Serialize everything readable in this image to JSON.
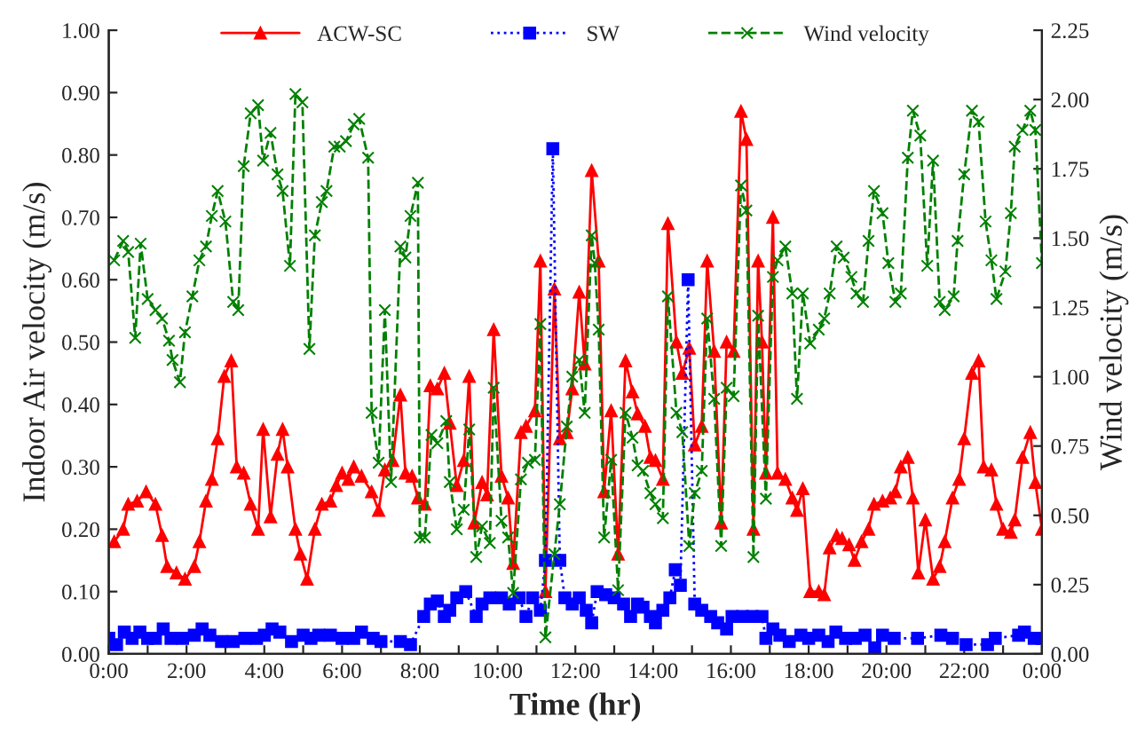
{
  "chart_data": {
    "type": "line",
    "xlabel": "Time (hr)",
    "ylabel": "Indoor Air velocity (m/s)",
    "y2label": "Wind velocity (m/s)",
    "xlim": [
      0,
      24
    ],
    "xticks": [
      {
        "value": 0,
        "label": "0:00"
      },
      {
        "value": 1,
        "label": null
      },
      {
        "value": 2,
        "label": "2:00"
      },
      {
        "value": 3,
        "label": null
      },
      {
        "value": 4,
        "label": "4:00"
      },
      {
        "value": 5,
        "label": null
      },
      {
        "value": 6,
        "label": "6:00"
      },
      {
        "value": 7,
        "label": null
      },
      {
        "value": 8,
        "label": "8:00"
      },
      {
        "value": 9,
        "label": null
      },
      {
        "value": 10,
        "label": "10:00"
      },
      {
        "value": 11,
        "label": null
      },
      {
        "value": 12,
        "label": "12:00"
      },
      {
        "value": 13,
        "label": null
      },
      {
        "value": 14,
        "label": "14:00"
      },
      {
        "value": 15,
        "label": null
      },
      {
        "value": 16,
        "label": "16:00"
      },
      {
        "value": 17,
        "label": null
      },
      {
        "value": 18,
        "label": "18:00"
      },
      {
        "value": 19,
        "label": null
      },
      {
        "value": 20,
        "label": "20:00"
      },
      {
        "value": 21,
        "label": null
      },
      {
        "value": 22,
        "label": "22:00"
      },
      {
        "value": 23,
        "label": null
      },
      {
        "value": 24,
        "label": "0:00"
      }
    ],
    "ylim": [
      0,
      1
    ],
    "yticks": [
      {
        "value": 0,
        "label": "0.00"
      },
      {
        "value": 0.1,
        "label": "0.10"
      },
      {
        "value": 0.2,
        "label": "0.20"
      },
      {
        "value": 0.3,
        "label": "0.30"
      },
      {
        "value": 0.4,
        "label": "0.40"
      },
      {
        "value": 0.5,
        "label": "0.50"
      },
      {
        "value": 0.6,
        "label": "0.60"
      },
      {
        "value": 0.7,
        "label": "0.70"
      },
      {
        "value": 0.8,
        "label": "0.80"
      },
      {
        "value": 0.9,
        "label": "0.90"
      },
      {
        "value": 1,
        "label": "1.00"
      }
    ],
    "y2lim": [
      0,
      2.25
    ],
    "y2ticks": [
      {
        "value": 0,
        "label": "0.00"
      },
      {
        "value": 0.25,
        "label": "0.25"
      },
      {
        "value": 0.5,
        "label": "0.50"
      },
      {
        "value": 0.75,
        "label": "0.75"
      },
      {
        "value": 1,
        "label": "1.00"
      },
      {
        "value": 1.25,
        "label": "1.25"
      },
      {
        "value": 1.5,
        "label": "1.50"
      },
      {
        "value": 1.75,
        "label": "1.75"
      },
      {
        "value": 2,
        "label": "2.00"
      },
      {
        "value": 2.25,
        "label": "2.25"
      }
    ],
    "grid": false,
    "legend": "top",
    "series": [
      {
        "name": "ACW-SC",
        "color": "#ff0000",
        "marker": "triangle",
        "line_style": "solid",
        "x": [
          0.14,
          0.37,
          0.5,
          0.73,
          0.96,
          1.2,
          1.37,
          1.5,
          1.74,
          1.96,
          2.2,
          2.33,
          2.5,
          2.65,
          2.8,
          2.97,
          3.15,
          3.29,
          3.47,
          3.65,
          3.84,
          3.97,
          4.16,
          4.34,
          4.47,
          4.6,
          4.8,
          4.93,
          5.1,
          5.3,
          5.48,
          5.7,
          5.85,
          6.0,
          6.16,
          6.3,
          6.5,
          6.76,
          6.94,
          7.1,
          7.3,
          7.5,
          7.63,
          7.8,
          7.95,
          8.13,
          8.27,
          8.45,
          8.63,
          8.77,
          8.95,
          9.13,
          9.27,
          9.4,
          9.6,
          9.73,
          9.9,
          10.1,
          10.27,
          10.4,
          10.6,
          10.73,
          10.96,
          11.1,
          11.23,
          11.46,
          11.6,
          11.78,
          11.92,
          12.1,
          12.24,
          12.42,
          12.6,
          12.74,
          12.92,
          13.1,
          13.29,
          13.47,
          13.6,
          13.79,
          13.93,
          14.06,
          14.25,
          14.38,
          14.6,
          14.75,
          14.93,
          15.07,
          15.25,
          15.39,
          15.57,
          15.75,
          15.89,
          16.07,
          16.26,
          16.4,
          16.58,
          16.7,
          16.8,
          16.9,
          17.08,
          17.2,
          17.4,
          17.58,
          17.7,
          17.85,
          18.04,
          18.26,
          18.4,
          18.54,
          18.72,
          18.86,
          19.04,
          19.18,
          19.36,
          19.54,
          19.68,
          19.9,
          20.1,
          20.23,
          20.37,
          20.55,
          20.68,
          20.82,
          21.0,
          21.2,
          21.37,
          21.5,
          21.7,
          21.87,
          22.0,
          22.2,
          22.37,
          22.5,
          22.7,
          22.83,
          23.0,
          23.2,
          23.3,
          23.5,
          23.7,
          23.83,
          24.0
        ],
        "values": [
          0.18,
          0.2,
          0.24,
          0.245,
          0.26,
          0.24,
          0.19,
          0.14,
          0.13,
          0.12,
          0.14,
          0.18,
          0.245,
          0.28,
          0.345,
          0.445,
          0.47,
          0.3,
          0.29,
          0.24,
          0.2,
          0.36,
          0.22,
          0.32,
          0.36,
          0.3,
          0.2,
          0.16,
          0.12,
          0.2,
          0.24,
          0.245,
          0.27,
          0.29,
          0.28,
          0.3,
          0.285,
          0.26,
          0.23,
          0.295,
          0.31,
          0.415,
          0.29,
          0.285,
          0.25,
          0.24,
          0.43,
          0.425,
          0.45,
          0.37,
          0.27,
          0.31,
          0.445,
          0.21,
          0.275,
          0.255,
          0.52,
          0.285,
          0.25,
          0.145,
          0.355,
          0.365,
          0.39,
          0.63,
          0.1,
          0.585,
          0.345,
          0.355,
          0.425,
          0.58,
          0.465,
          0.775,
          0.63,
          0.26,
          0.39,
          0.16,
          0.47,
          0.42,
          0.385,
          0.365,
          0.315,
          0.31,
          0.28,
          0.69,
          0.5,
          0.45,
          0.49,
          0.335,
          0.365,
          0.63,
          0.485,
          0.21,
          0.5,
          0.485,
          0.87,
          0.825,
          0.2,
          0.63,
          0.5,
          0.29,
          0.7,
          0.29,
          0.28,
          0.25,
          0.23,
          0.265,
          0.1,
          0.1,
          0.095,
          0.17,
          0.19,
          0.185,
          0.175,
          0.15,
          0.18,
          0.2,
          0.24,
          0.245,
          0.25,
          0.26,
          0.3,
          0.315,
          0.25,
          0.13,
          0.215,
          0.12,
          0.14,
          0.18,
          0.25,
          0.28,
          0.345,
          0.45,
          0.47,
          0.3,
          0.295,
          0.24,
          0.2,
          0.195,
          0.215,
          0.315,
          0.355,
          0.275,
          0.2
        ]
      },
      {
        "name": "SW",
        "color": "#0000ff",
        "marker": "square",
        "line_style": "dotted",
        "x": [
          0,
          0.2,
          0.4,
          0.6,
          0.8,
          1.0,
          1.2,
          1.4,
          1.6,
          1.9,
          2.2,
          2.4,
          2.6,
          2.9,
          3.2,
          3.5,
          3.8,
          4.0,
          4.2,
          4.4,
          4.7,
          5.0,
          5.2,
          5.4,
          5.7,
          6.0,
          6.3,
          6.5,
          6.8,
          7.0,
          7.5,
          7.76,
          8.1,
          8.27,
          8.45,
          8.63,
          8.77,
          8.95,
          9.18,
          9.45,
          9.6,
          9.8,
          10.1,
          10.3,
          10.55,
          10.73,
          10.9,
          11.1,
          11.23,
          11.42,
          11.6,
          11.73,
          11.92,
          12.1,
          12.28,
          12.42,
          12.56,
          12.78,
          13.0,
          13.24,
          13.42,
          13.6,
          13.74,
          13.93,
          14.06,
          14.25,
          14.43,
          14.57,
          14.7,
          14.9,
          15.07,
          15.25,
          15.48,
          15.66,
          15.89,
          16.03,
          16.3,
          16.55,
          16.8,
          16.9,
          17.08,
          17.26,
          17.5,
          17.8,
          18.0,
          18.26,
          18.5,
          18.7,
          18.95,
          19.2,
          19.45,
          19.7,
          19.9,
          20.2,
          20.8,
          21.4,
          21.7,
          22.05,
          22.6,
          22.8,
          23.4,
          23.55,
          23.8,
          24.0
        ],
        "values": [
          0.025,
          0.015,
          0.035,
          0.025,
          0.035,
          0.025,
          0.025,
          0.04,
          0.025,
          0.025,
          0.03,
          0.04,
          0.03,
          0.02,
          0.02,
          0.025,
          0.025,
          0.03,
          0.04,
          0.035,
          0.02,
          0.03,
          0.025,
          0.03,
          0.03,
          0.025,
          0.025,
          0.035,
          0.025,
          0.02,
          0.02,
          0.015,
          0.06,
          0.08,
          0.085,
          0.06,
          0.07,
          0.09,
          0.1,
          0.06,
          0.08,
          0.09,
          0.09,
          0.08,
          0.09,
          0.06,
          0.09,
          0.07,
          0.15,
          0.81,
          0.15,
          0.09,
          0.08,
          0.09,
          0.07,
          0.05,
          0.1,
          0.095,
          0.09,
          0.08,
          0.06,
          0.08,
          0.075,
          0.06,
          0.05,
          0.07,
          0.09,
          0.135,
          0.11,
          0.6,
          0.08,
          0.07,
          0.06,
          0.05,
          0.04,
          0.06,
          0.06,
          0.06,
          0.06,
          0.025,
          0.04,
          0.03,
          0.02,
          0.03,
          0.025,
          0.03,
          0.02,
          0.035,
          0.025,
          0.025,
          0.03,
          0.01,
          0.03,
          0.025,
          0.025,
          0.03,
          0.025,
          0.015,
          0.015,
          0.025,
          0.03,
          0.035,
          0.025,
          0.025
        ]
      },
      {
        "name": "Wind velocity",
        "color": "#008000",
        "marker": "cross",
        "line_style": "dashed",
        "axis": "y2",
        "x": [
          0.14,
          0.37,
          0.5,
          0.68,
          0.82,
          1.0,
          1.2,
          1.37,
          1.55,
          1.64,
          1.83,
          1.96,
          2.15,
          2.33,
          2.5,
          2.65,
          2.8,
          3.0,
          3.2,
          3.33,
          3.47,
          3.65,
          3.84,
          3.97,
          4.16,
          4.34,
          4.47,
          4.66,
          4.8,
          4.98,
          5.16,
          5.3,
          5.48,
          5.6,
          5.8,
          5.94,
          6.1,
          6.3,
          6.44,
          6.67,
          6.76,
          6.94,
          7.1,
          7.26,
          7.5,
          7.63,
          7.76,
          7.95,
          8.0,
          8.13,
          8.3,
          8.45,
          8.68,
          8.77,
          8.95,
          9.13,
          9.27,
          9.45,
          9.6,
          9.8,
          9.9,
          10.1,
          10.27,
          10.4,
          10.6,
          10.78,
          10.96,
          11.1,
          11.23,
          11.46,
          11.6,
          11.78,
          11.92,
          12.1,
          12.24,
          12.42,
          12.5,
          12.6,
          12.74,
          12.92,
          13.1,
          13.29,
          13.47,
          13.6,
          13.74,
          13.93,
          14.06,
          14.25,
          14.38,
          14.6,
          14.75,
          14.93,
          15.07,
          15.25,
          15.39,
          15.57,
          15.75,
          15.89,
          16.07,
          16.26,
          16.4,
          16.58,
          16.7,
          16.9,
          17.08,
          17.2,
          17.4,
          17.58,
          17.7,
          17.85,
          18.04,
          18.26,
          18.4,
          18.54,
          18.72,
          18.9,
          19.1,
          19.23,
          19.4,
          19.54,
          19.68,
          19.9,
          20.05,
          20.23,
          20.37,
          20.55,
          20.68,
          20.87,
          21.05,
          21.2,
          21.37,
          21.5,
          21.73,
          21.83,
          22.0,
          22.2,
          22.37,
          22.55,
          22.7,
          22.83,
          23.06,
          23.2,
          23.3,
          23.5,
          23.7,
          23.83,
          24.0
        ],
        "values": [
          1.42,
          1.49,
          1.45,
          1.14,
          1.48,
          1.28,
          1.24,
          1.21,
          1.13,
          1.06,
          0.98,
          1.16,
          1.29,
          1.42,
          1.47,
          1.58,
          1.67,
          1.56,
          1.27,
          1.24,
          1.76,
          1.95,
          1.98,
          1.78,
          1.88,
          1.73,
          1.67,
          1.4,
          2.02,
          1.99,
          1.1,
          1.51,
          1.63,
          1.67,
          1.83,
          1.83,
          1.85,
          1.91,
          1.93,
          1.79,
          0.87,
          0.69,
          1.24,
          0.62,
          1.47,
          1.43,
          1.58,
          1.7,
          0.42,
          0.42,
          0.79,
          0.76,
          0.84,
          0.62,
          0.45,
          0.52,
          0.81,
          0.35,
          0.46,
          0.4,
          0.96,
          0.48,
          0.42,
          0.22,
          0.63,
          0.69,
          0.7,
          1.19,
          0.06,
          0.36,
          0.54,
          0.82,
          1.0,
          1.06,
          0.87,
          1.51,
          1.41,
          1.17,
          0.42,
          0.7,
          0.23,
          0.87,
          0.78,
          0.68,
          0.66,
          0.58,
          0.54,
          0.49,
          1.29,
          0.87,
          0.8,
          0.39,
          0.58,
          0.66,
          1.21,
          0.92,
          0.39,
          0.96,
          0.93,
          1.69,
          1.6,
          0.35,
          1.22,
          0.56,
          1.36,
          1.42,
          1.47,
          1.3,
          0.92,
          1.3,
          1.12,
          1.17,
          1.21,
          1.3,
          1.47,
          1.43,
          1.36,
          1.3,
          1.27,
          1.49,
          1.67,
          1.59,
          1.41,
          1.27,
          1.3,
          1.79,
          1.96,
          1.87,
          1.4,
          1.78,
          1.27,
          1.24,
          1.29,
          1.49,
          1.73,
          1.96,
          1.92,
          1.56,
          1.42,
          1.28,
          1.38,
          1.59,
          1.83,
          1.89,
          1.96,
          1.89,
          1.41
        ]
      }
    ]
  }
}
